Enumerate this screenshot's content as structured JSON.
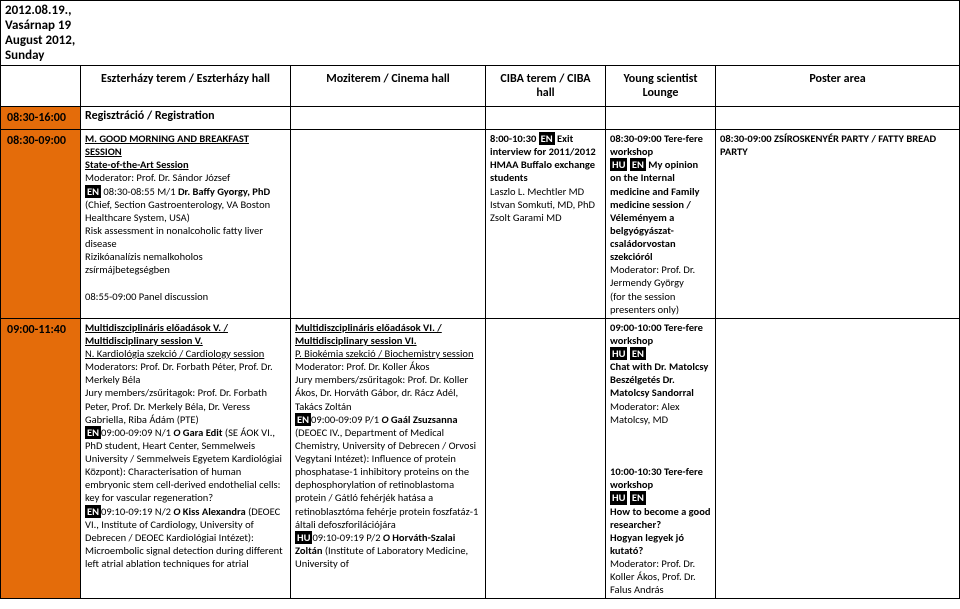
{
  "date_line": "2012.08.19., Vasárnap    19 August 2012, Sunday",
  "columns": {
    "time_blank": "",
    "c1": "Eszterházy terem / Eszterházy hall",
    "c2": "Moziterem / Cinema hall",
    "c3": "CIBA terem / CIBA hall",
    "c4": "Young scientist Lounge",
    "c5": "Poster area"
  },
  "reg_row": {
    "time": "08:30-16:00",
    "text": "Regisztráció / Registration"
  },
  "row1": {
    "time": "08:30-09:00",
    "c1": {
      "title": "M. GOOD MORNING AND BREAKFAST SESSION",
      "soa": "State-of-the-Art Session",
      "mod": "Moderator: Prof. Dr. Sándor József",
      "badge": "EN",
      "slot": " 08:30-08:55 M/1 ",
      "name": "Dr. Baffy Gyorgy, PhD",
      "aff": " (Chief, Section Gastroenterology, VA Boston Healthcare System, USA)",
      "t_en": "Risk assessment in nonalcoholic fatty liver disease",
      "t_hu": "Rizikóanalízis nemalkoholos zsírmájbetegségben",
      "panel": "08:55-09:00 Panel discussion"
    },
    "c3": {
      "time": "8:00-10:30 ",
      "badge": "EN",
      "title": " Exit interview for 2011/2012 HMAA Buffalo exchange students",
      "p1": "Laszlo L. Mechtler MD",
      "p2": "Istvan Somkuti, MD, PhD",
      "p3": "Zsolt Garami MD"
    },
    "c4": {
      "a_time": "08:30-09:00 Tere-fere workshop",
      "a_b1": "HU",
      "a_b2": "EN",
      "a_txt": " My opinion on the Internal medicine and Family medicine session / Véleményem a belgyógyászat-családorvostan szekcióról",
      "a_mod": "Moderator: Prof. Dr. Jermendy György",
      "a_note": "(for the session presenters only)"
    },
    "c5": {
      "text": "08:30-09:00 ZSÍROSKENYÉR PARTY / FATTY BREAD PARTY"
    }
  },
  "row2": {
    "time": "09:00-11:40",
    "c1": {
      "t1": "Multidiszciplináris előadások V. / Multidisciplinary session V.",
      "sec": "N. Kardiológia szekció / Cardiology session",
      "mod": "Moderators: Prof. Dr. Forbath Péter, Prof. Dr. Merkely Béla",
      "jury": "Jury members/zsűritagok: Prof. Dr. Forbath Peter, Prof. Dr. Merkely Béla, Dr. Veress Gabriella, Riba Ádám (PTE)",
      "b1": "EN",
      "s1": "09:00-09:09 N/1 ",
      "o1": "O",
      "n1": " Gara Edit",
      "a1": " (SE ÁOK VI., PhD student, Heart Center, Semmelweis University / Semmelweis Egyetem Kardiológiai Központ): Characterisation of human embryonic stem cell-derived endothelial cells: key for vascular regeneration?",
      "b2": "EN",
      "s2": "09:10-09:19 N/2 ",
      "o2": "O",
      "n2": " Kiss Alexandra",
      "a2": " (DEOEC VI., Institute of Cardiology, University of Debrecen / DEOEC Kardiológiai Intézet): Microembolic signal detection during different left atrial ablation techniques for atrial"
    },
    "c2": {
      "t1": "Multidiszciplináris előadások VI.  / Multidisciplinary session VI.",
      "sec": "P. Biokémia szekció / Biochemistry session",
      "mod": "Moderator: Prof. Dr. Koller Ákos",
      "jury": "Jury members/zsűritagok: Prof. Dr. Koller Ákos, Dr. Horváth Gábor, dr. Rácz Adél, Takács Zoltán",
      "b1": "EN",
      "s1": "09:00-09:09 P/1 ",
      "o1": "O",
      "n1": " Gaál Zsuzsanna",
      "a1": " (DEOEC IV., Department of Medical Chemistry, University of Debrecen  / Orvosi Vegytani Intézet): Influence of protein phosphatase-1 inhibitory proteins on the dephosphorylation of retinoblastoma protein / Gátló fehérjék hatása a retinoblasztóma fehérje protein foszfatáz-1 általi defoszforilációjára",
      "b2": "HU",
      "s2": "09:10-09:19 P/2 ",
      "o2": "O",
      "n2": " Horváth-Szalai Zoltán",
      "a2": " (Institute of Laboratory Medicine, University of"
    },
    "c4": {
      "a_time": "09:00-10:00 Tere-fere workshop",
      "a_b1": "HU",
      "a_b2": "EN",
      "a_txt1": "Chat with Dr. Matolcsy",
      "a_txt2": "Beszélgetés Dr. Matolcsy Sandorral",
      "a_mod": "Moderator: Alex Matolcsy, MD",
      "b_time": "10:00-10:30 Tere-fere workshop",
      "b_b1": "HU",
      "b_b2": "EN",
      "b_txt1": "How to become a good researcher?",
      "b_txt2": "Hogyan legyek jó kutató?",
      "b_mod": "Moderator: Prof. Dr. Koller Ákos, Prof. Dr. Falus András"
    }
  }
}
